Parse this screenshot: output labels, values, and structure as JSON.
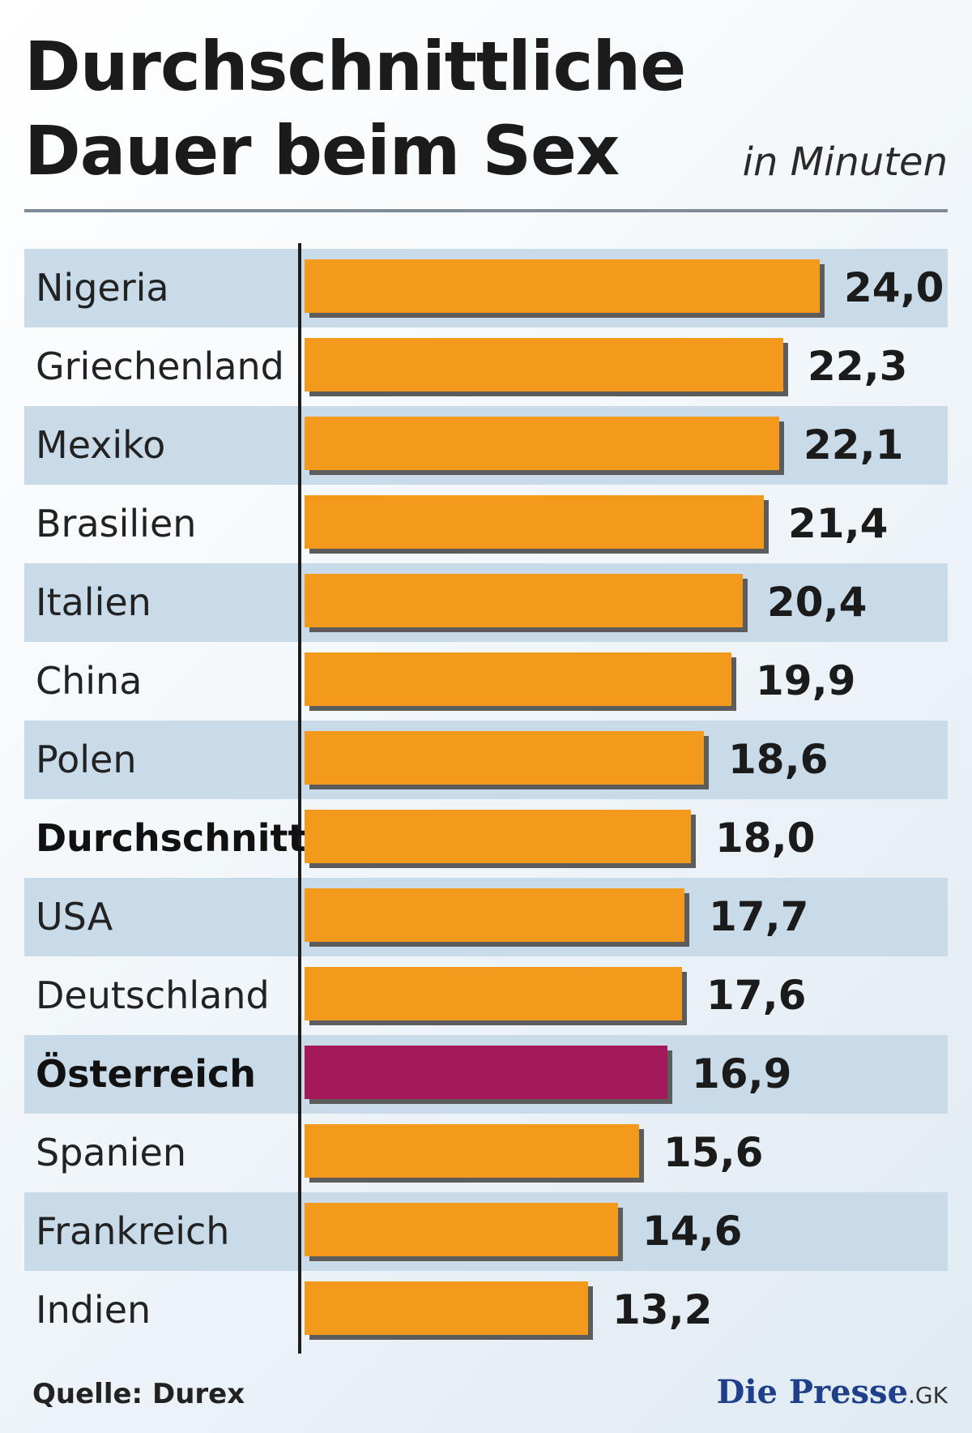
{
  "title": "Durchschnittliche Dauer beim Sex",
  "unit": "in Minuten",
  "source": "Quelle: Durex",
  "brand": {
    "name": "Die Presse",
    "suffix": ".GK"
  },
  "colors": {
    "bar": "#f39a1c",
    "highlight": "#a4195a",
    "band": "#c9dbe8"
  },
  "chart_data": {
    "type": "bar",
    "orientation": "horizontal",
    "title": "Durchschnittliche Dauer beim Sex",
    "unit": "in Minuten",
    "categories": [
      "Nigeria",
      "Griechenland",
      "Mexiko",
      "Brasilien",
      "Italien",
      "China",
      "Polen",
      "Durchschnitt",
      "USA",
      "Deutschland",
      "Österreich",
      "Spanien",
      "Frankreich",
      "Indien"
    ],
    "values": [
      24.0,
      22.3,
      22.1,
      21.4,
      20.4,
      19.9,
      18.6,
      18.0,
      17.7,
      17.6,
      16.9,
      15.6,
      14.6,
      13.2
    ],
    "value_labels": [
      "24,0",
      "22,3",
      "22,1",
      "21,4",
      "20,4",
      "19,9",
      "18,6",
      "18,0",
      "17,7",
      "17,6",
      "16,9",
      "15,6",
      "14,6",
      "13,2"
    ],
    "emphasized": [
      "Durchschnitt",
      "Österreich"
    ],
    "highlighted": [
      "Österreich"
    ],
    "xlim": [
      0,
      24.0
    ],
    "grid": false,
    "legend": "none"
  }
}
